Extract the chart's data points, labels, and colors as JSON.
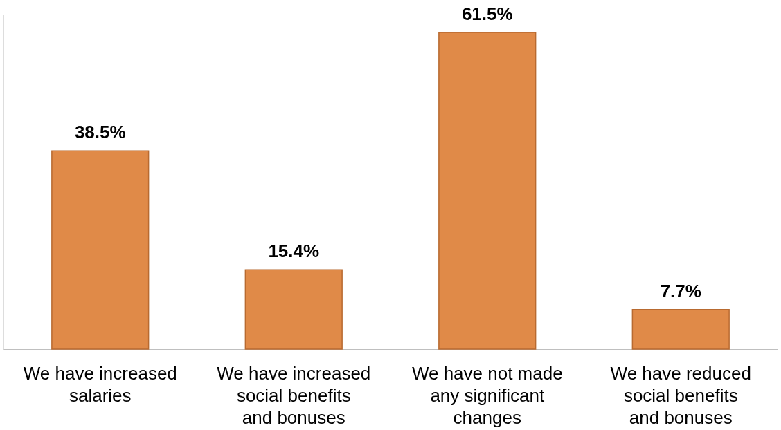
{
  "chart_data": {
    "type": "bar",
    "categories": [
      "We have increased salaries",
      "We have increased social benefits and bonuses",
      "We have not made any significant changes",
      "We have reduced social benefits and bonuses"
    ],
    "values": [
      38.5,
      15.4,
      61.5,
      7.7
    ],
    "value_labels": [
      "38.5%",
      "15.4%",
      "61.5%",
      "7.7%"
    ],
    "color": "#e08a48"
  }
}
